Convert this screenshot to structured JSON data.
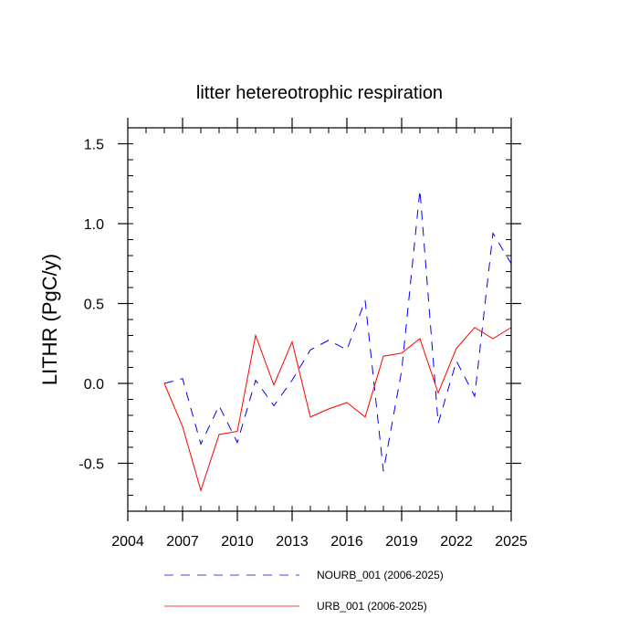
{
  "chart_data": {
    "type": "line",
    "title": "litter hetereotrophic respiration",
    "xlabel": "",
    "ylabel": "LITHR  (PgC/y)",
    "xlim": [
      2004,
      2025
    ],
    "ylim": [
      -0.8,
      1.6
    ],
    "xticks": [
      2004,
      2007,
      2010,
      2013,
      2016,
      2019,
      2022,
      2025
    ],
    "xtick_labels": [
      "2004",
      "2007",
      "2010",
      "2013",
      "2016",
      "2019",
      "2022",
      "2025"
    ],
    "yticks": [
      -0.5,
      0.0,
      0.5,
      1.0,
      1.5
    ],
    "ytick_labels": [
      "-0.5",
      "0.0",
      "0.5",
      "1.0",
      "1.5"
    ],
    "grid": false,
    "legend_position": "bottom",
    "x": [
      2006,
      2007,
      2008,
      2009,
      2010,
      2011,
      2012,
      2013,
      2014,
      2015,
      2016,
      2017,
      2018,
      2019,
      2020,
      2021,
      2022,
      2023,
      2024,
      2025
    ],
    "series": [
      {
        "name": "NOURB_001 (2006-2025)",
        "color": "#0000ff",
        "style": "dashed",
        "values": [
          0.0,
          0.03,
          -0.38,
          -0.14,
          -0.37,
          0.02,
          -0.14,
          0.02,
          0.21,
          0.27,
          0.21,
          0.52,
          -0.55,
          0.08,
          1.21,
          -0.25,
          0.14,
          -0.08,
          0.94,
          0.75
        ]
      },
      {
        "name": "URB_001 (2006-2025)",
        "color": "#ff0000",
        "style": "solid",
        "values": [
          0.0,
          -0.27,
          -0.67,
          -0.32,
          -0.3,
          0.3,
          -0.01,
          0.26,
          -0.21,
          -0.16,
          -0.12,
          -0.21,
          0.17,
          0.19,
          0.28,
          -0.06,
          0.22,
          0.35,
          0.28,
          0.35
        ]
      }
    ]
  }
}
